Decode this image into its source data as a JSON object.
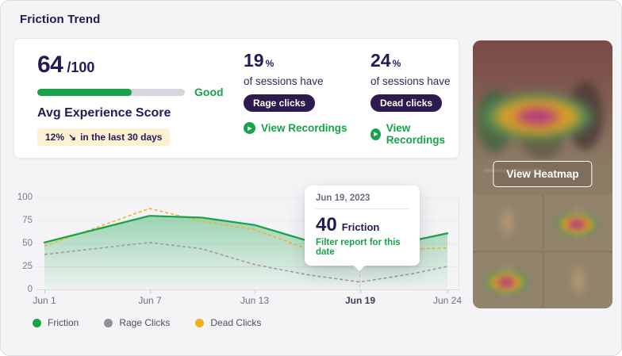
{
  "page": {
    "title": "Friction Trend"
  },
  "icons": {
    "play": "▶",
    "trend_down": "↘"
  },
  "summary": {
    "score": "64",
    "score_max": "/100",
    "score_pct": 64,
    "rating": "Good",
    "score_label": "Avg Experience Score",
    "trend_pct": "12%",
    "trend_text": "in the last 30 days"
  },
  "stats": [
    {
      "value": "19",
      "unit": "%",
      "caption": "of sessions have",
      "badge": "Rage clicks",
      "link": "View Recordings"
    },
    {
      "value": "24",
      "unit": "%",
      "caption": "of sessions have",
      "badge": "Dead clicks",
      "link": "View Recordings"
    }
  ],
  "chart_data": {
    "type": "area",
    "title": "Friction Trend",
    "x_days": [
      1,
      7,
      10,
      13,
      16,
      19,
      22,
      24
    ],
    "series": [
      {
        "name": "Friction",
        "color": "#17a34a",
        "style": "solid",
        "values": [
          51,
          80,
          78,
          70,
          53,
          40,
          53,
          61
        ]
      },
      {
        "name": "Rage Clicks",
        "color": "#9b9baa",
        "style": "dashed",
        "values": [
          38,
          51,
          44,
          27,
          16,
          8,
          17,
          25
        ]
      },
      {
        "name": "Dead Clicks",
        "color": "#f0b429",
        "style": "dashed",
        "values": [
          47,
          88,
          74,
          65,
          44,
          46,
          44,
          45
        ]
      }
    ],
    "highlight": {
      "day": 19,
      "series": "Friction",
      "value": 40
    },
    "ylim": [
      0,
      100
    ],
    "yticks_labels": [
      "100",
      "75",
      "50",
      "25",
      "0"
    ],
    "xticks": [
      {
        "label": "Jun 1",
        "day": 1,
        "selected": false
      },
      {
        "label": "Jun 7",
        "day": 7,
        "selected": false
      },
      {
        "label": "Jun 13",
        "day": 13,
        "selected": false
      },
      {
        "label": "Jun 19",
        "day": 19,
        "selected": true
      },
      {
        "label": "Jun 24",
        "day": 24,
        "selected": false
      }
    ],
    "grid": true,
    "legend_position": "bottom"
  },
  "tooltip": {
    "date": "Jun 19, 2023",
    "value": "40",
    "metric": "Friction",
    "action": "Filter report for this date"
  },
  "legend": {
    "items": [
      {
        "label": "Friction",
        "color": "#17a34a"
      },
      {
        "label": "Rage Clicks",
        "color": "#8f8f9d"
      },
      {
        "label": "Dead Clicks",
        "color": "#f2b01e"
      }
    ]
  },
  "heatmap": {
    "button_label": "View Heatmap"
  },
  "colors": {
    "navy_text": "#231b55",
    "accent_green": "#17a34a",
    "pill_dark": "#2d1b4e",
    "badge_yellow_bg": "#fdf1d2",
    "page_bg": "#f4f4f6"
  }
}
